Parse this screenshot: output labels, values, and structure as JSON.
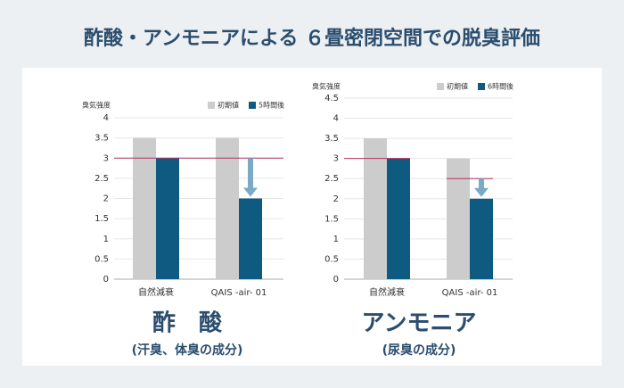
{
  "header": {
    "title": "酢酸・アンモニアによる ６畳密閉空間での脱臭評価"
  },
  "chart_data": [
    {
      "type": "bar",
      "ylabel": "臭気強度",
      "categories": [
        "自然減衰",
        "QAIS -air- 01"
      ],
      "series": [
        {
          "name": "初期値",
          "color": "#cccccc",
          "values": [
            3.5,
            3.5
          ]
        },
        {
          "name": "5時間後",
          "color": "#0f5a80",
          "values": [
            3,
            2
          ]
        }
      ],
      "reference_values": [
        3,
        3
      ],
      "reference_color": "#b03060",
      "arrow_color": "#7aaac8",
      "ylim": [
        0,
        4
      ],
      "yticks": [
        0,
        0.5,
        1,
        1.5,
        2,
        2.5,
        3,
        3.5,
        4
      ],
      "grid": true,
      "caption": "酢　酸",
      "subcaption": "(汗臭、体臭の成分)"
    },
    {
      "type": "bar",
      "ylabel": "臭気強度",
      "categories": [
        "自然減衰",
        "QAIS -air- 01"
      ],
      "series": [
        {
          "name": "初期値",
          "color": "#cccccc",
          "values": [
            3.5,
            3
          ]
        },
        {
          "name": "6時間後",
          "color": "#0f5a80",
          "values": [
            3,
            2
          ]
        }
      ],
      "reference_values": [
        3,
        2.5
      ],
      "reference_color": "#b03060",
      "arrow_color": "#7aaac8",
      "ylim": [
        0,
        4.5
      ],
      "yticks": [
        0,
        0.5,
        1,
        1.5,
        2,
        2.5,
        3,
        3.5,
        4,
        4.5
      ],
      "grid": true,
      "caption": "アンモニア",
      "subcaption": "(尿臭の成分)"
    }
  ]
}
